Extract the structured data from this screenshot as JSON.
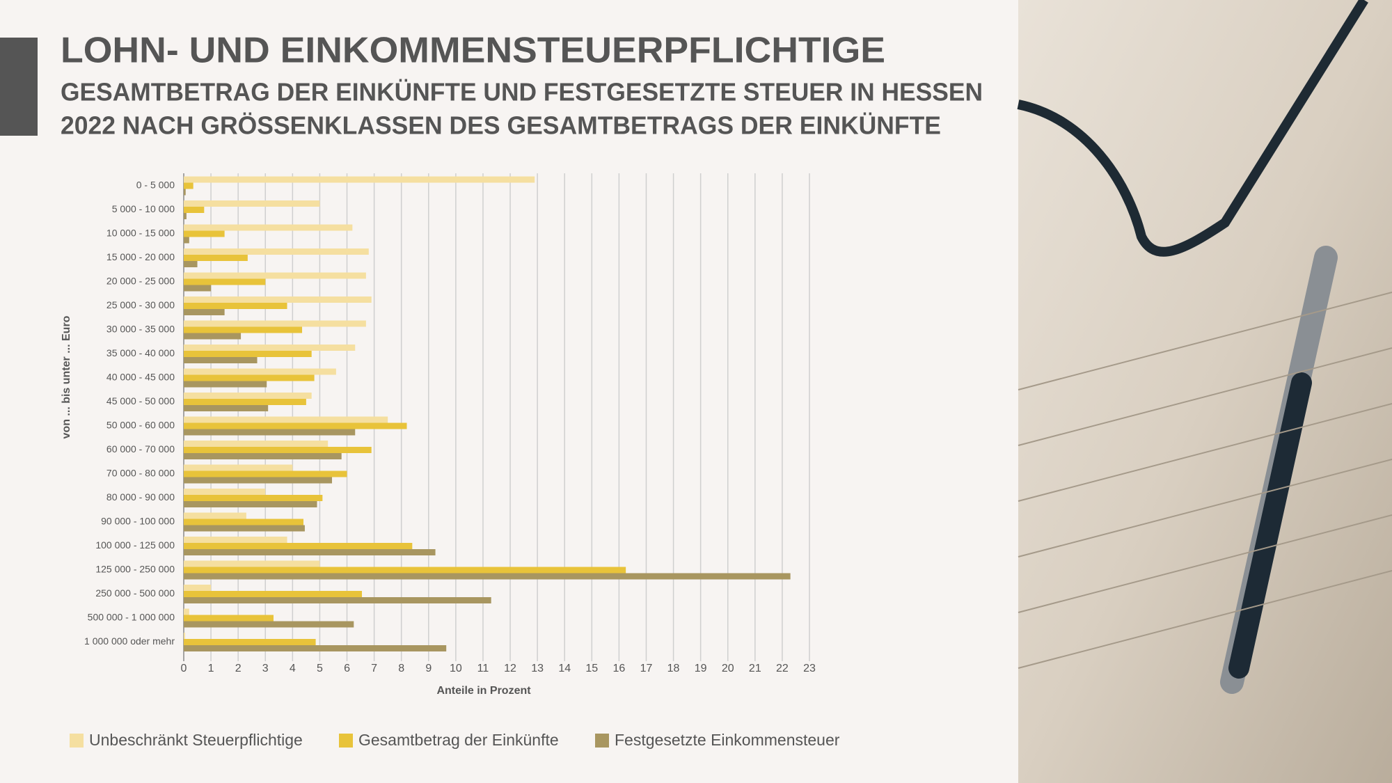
{
  "chart_data": {
    "type": "bar",
    "orientation": "horizontal",
    "title": "LOHN- UND EINKOMMENSTEUERPFLICHTIGE",
    "subtitle": [
      "GESAMTBETRAG DER EINKÜNFTE UND FESTGESETZTE STEUER IN HESSEN",
      "2022 NACH GRÖSSENKLASSEN DES GESAMTBETRAGS DER EINKÜNFTE"
    ],
    "y_label": "von ... bis unter ... Euro",
    "x_label": "Anteile in Prozent",
    "categories": [
      "0 - 5 000",
      "5 000 - 10 000",
      "10 000 - 15 000",
      "15 000 - 20 000",
      "20 000 - 25 000",
      "25 000 - 30 000",
      "30 000 - 35 000",
      "35 000 - 40 000",
      "40 000 - 45 000",
      "45 000 - 50 000",
      "50 000 - 60 000",
      "60 000 - 70 000",
      "70 000 - 80 000",
      "80 000 - 90 000",
      "90 000 - 100 000",
      "100 000 - 125 000",
      "125 000 - 250 000",
      "250 000 - 500 000",
      "500 000 - 1 000 000",
      "1 000 000 oder mehr"
    ],
    "series": [
      {
        "name": "Unbeschränkt Steuerpflichtige",
        "color": "#f5dfa0",
        "values": [
          12.9,
          5.0,
          6.2,
          6.8,
          6.7,
          6.9,
          6.7,
          6.3,
          5.6,
          4.7,
          7.5,
          5.3,
          4.0,
          3.0,
          2.3,
          3.8,
          5.0,
          1.0,
          0.2,
          0.05
        ]
      },
      {
        "name": "Gesamtbetrag der Einkünfte",
        "color": "#e8c33a",
        "values": [
          0.35,
          0.75,
          1.5,
          2.35,
          3.0,
          3.8,
          4.35,
          4.7,
          4.8,
          4.5,
          8.2,
          6.9,
          6.0,
          5.1,
          4.4,
          8.4,
          16.25,
          6.55,
          3.3,
          4.85
        ]
      },
      {
        "name": "Festgesetzte Einkommensteuer",
        "color": "#a89660",
        "values": [
          0.07,
          0.1,
          0.2,
          0.5,
          1.0,
          1.5,
          2.1,
          2.7,
          3.05,
          3.1,
          6.3,
          5.8,
          5.45,
          4.9,
          4.45,
          9.25,
          22.3,
          11.3,
          6.25,
          9.65
        ]
      }
    ],
    "xlim": [
      0,
      23
    ],
    "xticks": [
      0,
      1,
      2,
      3,
      4,
      5,
      6,
      7,
      8,
      9,
      10,
      11,
      12,
      13,
      14,
      15,
      16,
      17,
      18,
      19,
      20,
      21,
      22,
      23
    ],
    "grid": true,
    "legend": "bottom"
  }
}
